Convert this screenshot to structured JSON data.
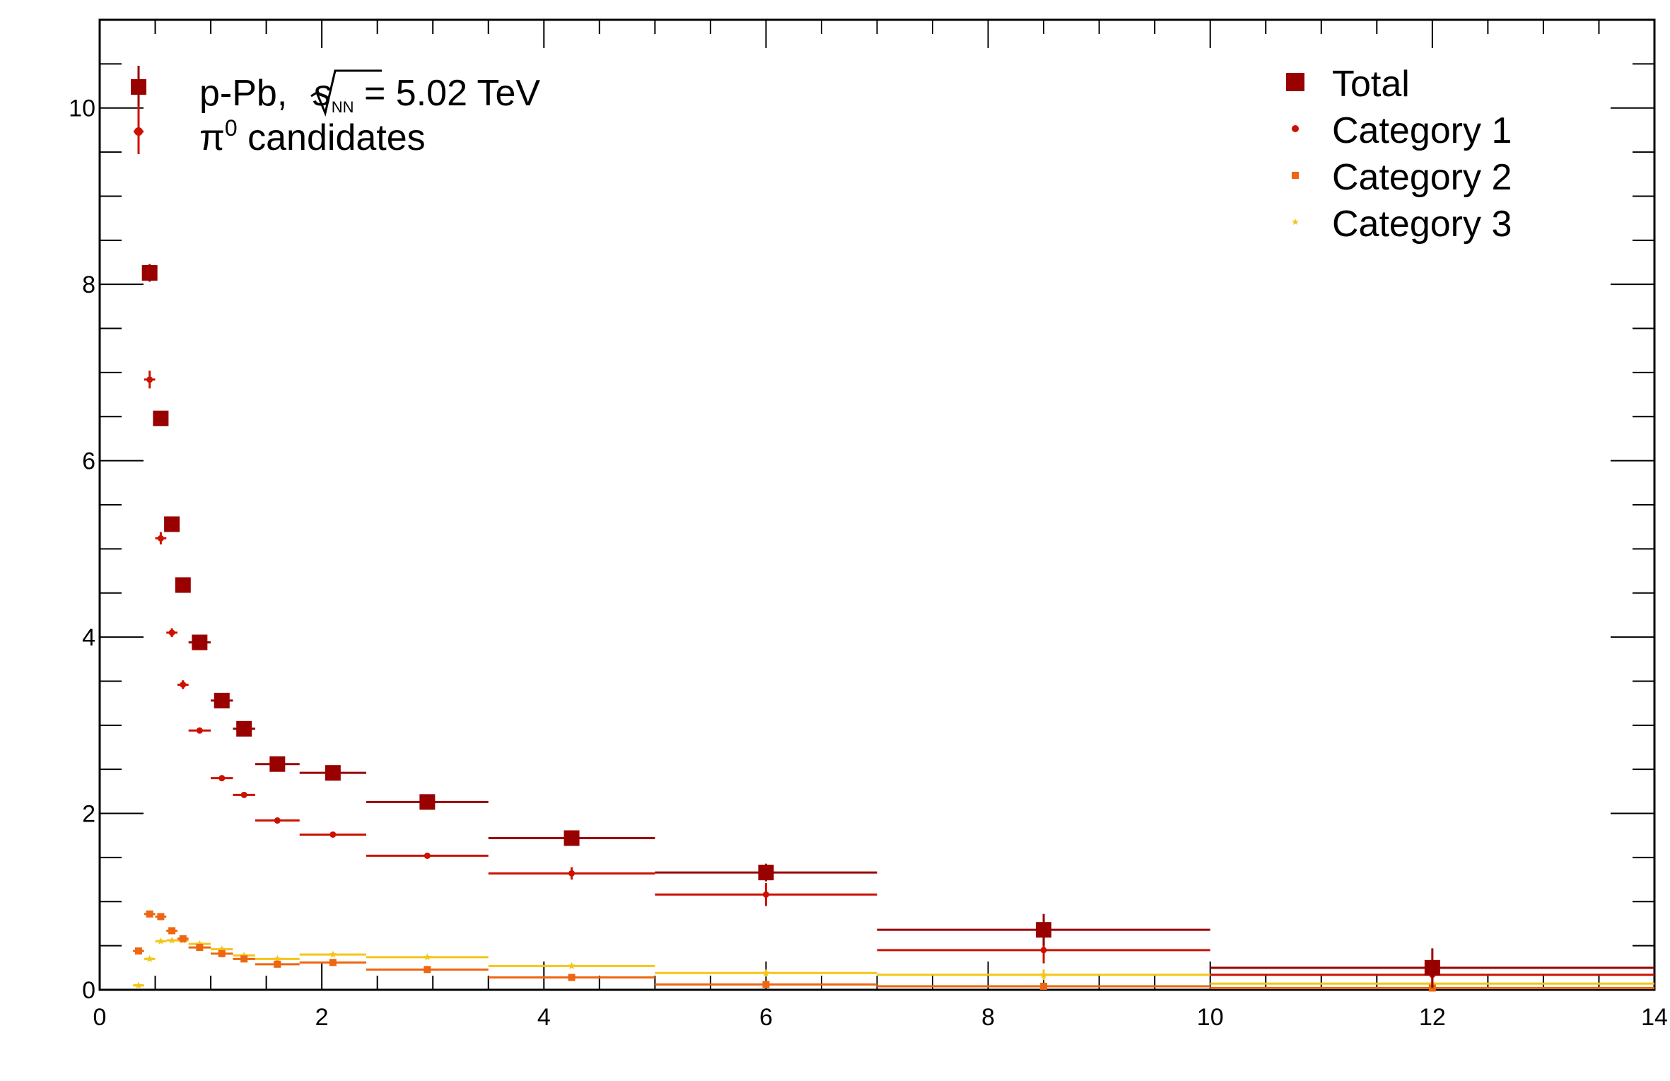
{
  "annotation": {
    "line1_prefix": "p-Pb, ",
    "sqrt_s": "s",
    "sqrt_sub": "NN",
    "line1_suffix": " = 5.02 TeV",
    "line2_symbol": "π",
    "line2_sup": "0",
    "line2_text": " candidates"
  },
  "colors": {
    "total": "#990000",
    "category1": "#cc1100",
    "category2": "#ee6611",
    "category3": "#f5c518"
  },
  "chart_data": {
    "type": "scatter",
    "title": "",
    "xlabel": "",
    "ylabel": "",
    "xlim": [
      0,
      14
    ],
    "ylim": [
      0,
      11
    ],
    "x_ticks": [
      0,
      2,
      4,
      6,
      8,
      10,
      12,
      14
    ],
    "y_ticks": [
      0,
      2,
      4,
      6,
      8,
      10
    ],
    "legend_position": "top-right",
    "grid": false,
    "series": [
      {
        "name": "Total",
        "key": "total",
        "marker": "square",
        "points": [
          {
            "x": 0.45,
            "y": 8.13,
            "xerr": 0.05,
            "yerr": 0.1
          },
          {
            "x": 0.55,
            "y": 6.48,
            "xerr": 0.05,
            "yerr": 0.05
          },
          {
            "x": 0.65,
            "y": 5.28,
            "xerr": 0.05,
            "yerr": 0.05
          },
          {
            "x": 0.75,
            "y": 4.59,
            "xerr": 0.05,
            "yerr": 0.05
          },
          {
            "x": 0.9,
            "y": 3.94,
            "xerr": 0.1,
            "yerr": 0.05
          },
          {
            "x": 1.1,
            "y": 3.28,
            "xerr": 0.1,
            "yerr": 0.05
          },
          {
            "x": 1.3,
            "y": 2.96,
            "xerr": 0.1,
            "yerr": 0.05
          },
          {
            "x": 1.6,
            "y": 2.56,
            "xerr": 0.2,
            "yerr": 0.05
          },
          {
            "x": 2.1,
            "y": 2.46,
            "xerr": 0.3,
            "yerr": 0.05
          },
          {
            "x": 2.95,
            "y": 2.13,
            "xerr": 0.55,
            "yerr": 0.05
          },
          {
            "x": 4.25,
            "y": 1.72,
            "xerr": 0.75,
            "yerr": 0.05
          },
          {
            "x": 6.0,
            "y": 1.33,
            "xerr": 1.0,
            "yerr": 0.1
          },
          {
            "x": 8.5,
            "y": 0.68,
            "xerr": 1.5,
            "yerr": 0.18
          },
          {
            "x": 12.0,
            "y": 0.25,
            "xerr": 2.0,
            "yerr": 0.22
          }
        ]
      },
      {
        "name": "Category 1",
        "key": "category1",
        "marker": "circle",
        "points": [
          {
            "x": 0.45,
            "y": 6.92,
            "xerr": 0.05,
            "yerr": 0.1
          },
          {
            "x": 0.55,
            "y": 5.12,
            "xerr": 0.05,
            "yerr": 0.07
          },
          {
            "x": 0.65,
            "y": 4.05,
            "xerr": 0.05,
            "yerr": 0.05
          },
          {
            "x": 0.75,
            "y": 3.46,
            "xerr": 0.05,
            "yerr": 0.05
          },
          {
            "x": 0.9,
            "y": 2.94,
            "xerr": 0.1,
            "yerr": 0.03
          },
          {
            "x": 1.1,
            "y": 2.4,
            "xerr": 0.1,
            "yerr": 0.03
          },
          {
            "x": 1.3,
            "y": 2.21,
            "xerr": 0.1,
            "yerr": 0.03
          },
          {
            "x": 1.6,
            "y": 1.92,
            "xerr": 0.2,
            "yerr": 0.03
          },
          {
            "x": 2.1,
            "y": 1.76,
            "xerr": 0.3,
            "yerr": 0.03
          },
          {
            "x": 2.95,
            "y": 1.52,
            "xerr": 0.55,
            "yerr": 0.03
          },
          {
            "x": 4.25,
            "y": 1.32,
            "xerr": 0.75,
            "yerr": 0.07
          },
          {
            "x": 6.0,
            "y": 1.08,
            "xerr": 1.0,
            "yerr": 0.13
          },
          {
            "x": 8.5,
            "y": 0.45,
            "xerr": 1.5,
            "yerr": 0.15
          },
          {
            "x": 12.0,
            "y": 0.17,
            "xerr": 2.0,
            "yerr": 0.15
          }
        ]
      },
      {
        "name": "Category 2",
        "key": "category2",
        "marker": "square",
        "points": [
          {
            "x": 0.35,
            "y": 0.44,
            "xerr": 0.05,
            "yerr": 0.03
          },
          {
            "x": 0.45,
            "y": 0.86,
            "xerr": 0.05,
            "yerr": 0.02
          },
          {
            "x": 0.55,
            "y": 0.83,
            "xerr": 0.05,
            "yerr": 0.02
          },
          {
            "x": 0.65,
            "y": 0.67,
            "xerr": 0.05,
            "yerr": 0.02
          },
          {
            "x": 0.75,
            "y": 0.58,
            "xerr": 0.05,
            "yerr": 0.02
          },
          {
            "x": 0.9,
            "y": 0.48,
            "xerr": 0.1,
            "yerr": 0.02
          },
          {
            "x": 1.1,
            "y": 0.41,
            "xerr": 0.1,
            "yerr": 0.02
          },
          {
            "x": 1.3,
            "y": 0.35,
            "xerr": 0.1,
            "yerr": 0.02
          },
          {
            "x": 1.6,
            "y": 0.29,
            "xerr": 0.2,
            "yerr": 0.02
          },
          {
            "x": 2.1,
            "y": 0.31,
            "xerr": 0.3,
            "yerr": 0.02
          },
          {
            "x": 2.95,
            "y": 0.23,
            "xerr": 0.55,
            "yerr": 0.02
          },
          {
            "x": 4.25,
            "y": 0.14,
            "xerr": 0.75,
            "yerr": 0.02
          },
          {
            "x": 6.0,
            "y": 0.06,
            "xerr": 1.0,
            "yerr": 0.02
          },
          {
            "x": 8.5,
            "y": 0.04,
            "xerr": 1.5,
            "yerr": 0.02
          },
          {
            "x": 12.0,
            "y": 0.02,
            "xerr": 2.0,
            "yerr": 0.02
          }
        ]
      },
      {
        "name": "Category 3",
        "key": "category3",
        "marker": "star",
        "points": [
          {
            "x": 0.35,
            "y": 0.05,
            "xerr": 0.05,
            "yerr": 0.01
          },
          {
            "x": 0.45,
            "y": 0.35,
            "xerr": 0.05,
            "yerr": 0.02
          },
          {
            "x": 0.55,
            "y": 0.55,
            "xerr": 0.05,
            "yerr": 0.02
          },
          {
            "x": 0.65,
            "y": 0.56,
            "xerr": 0.05,
            "yerr": 0.02
          },
          {
            "x": 0.75,
            "y": 0.56,
            "xerr": 0.05,
            "yerr": 0.02
          },
          {
            "x": 0.9,
            "y": 0.52,
            "xerr": 0.1,
            "yerr": 0.02
          },
          {
            "x": 1.1,
            "y": 0.46,
            "xerr": 0.1,
            "yerr": 0.02
          },
          {
            "x": 1.3,
            "y": 0.39,
            "xerr": 0.1,
            "yerr": 0.02
          },
          {
            "x": 1.6,
            "y": 0.35,
            "xerr": 0.2,
            "yerr": 0.02
          },
          {
            "x": 2.1,
            "y": 0.4,
            "xerr": 0.3,
            "yerr": 0.02
          },
          {
            "x": 2.95,
            "y": 0.37,
            "xerr": 0.55,
            "yerr": 0.02
          },
          {
            "x": 4.25,
            "y": 0.27,
            "xerr": 0.75,
            "yerr": 0.02
          },
          {
            "x": 6.0,
            "y": 0.19,
            "xerr": 1.0,
            "yerr": 0.04
          },
          {
            "x": 8.5,
            "y": 0.17,
            "xerr": 1.5,
            "yerr": 0.06
          },
          {
            "x": 12.0,
            "y": 0.07,
            "xerr": 2.0,
            "yerr": 0.08
          }
        ]
      }
    ]
  }
}
